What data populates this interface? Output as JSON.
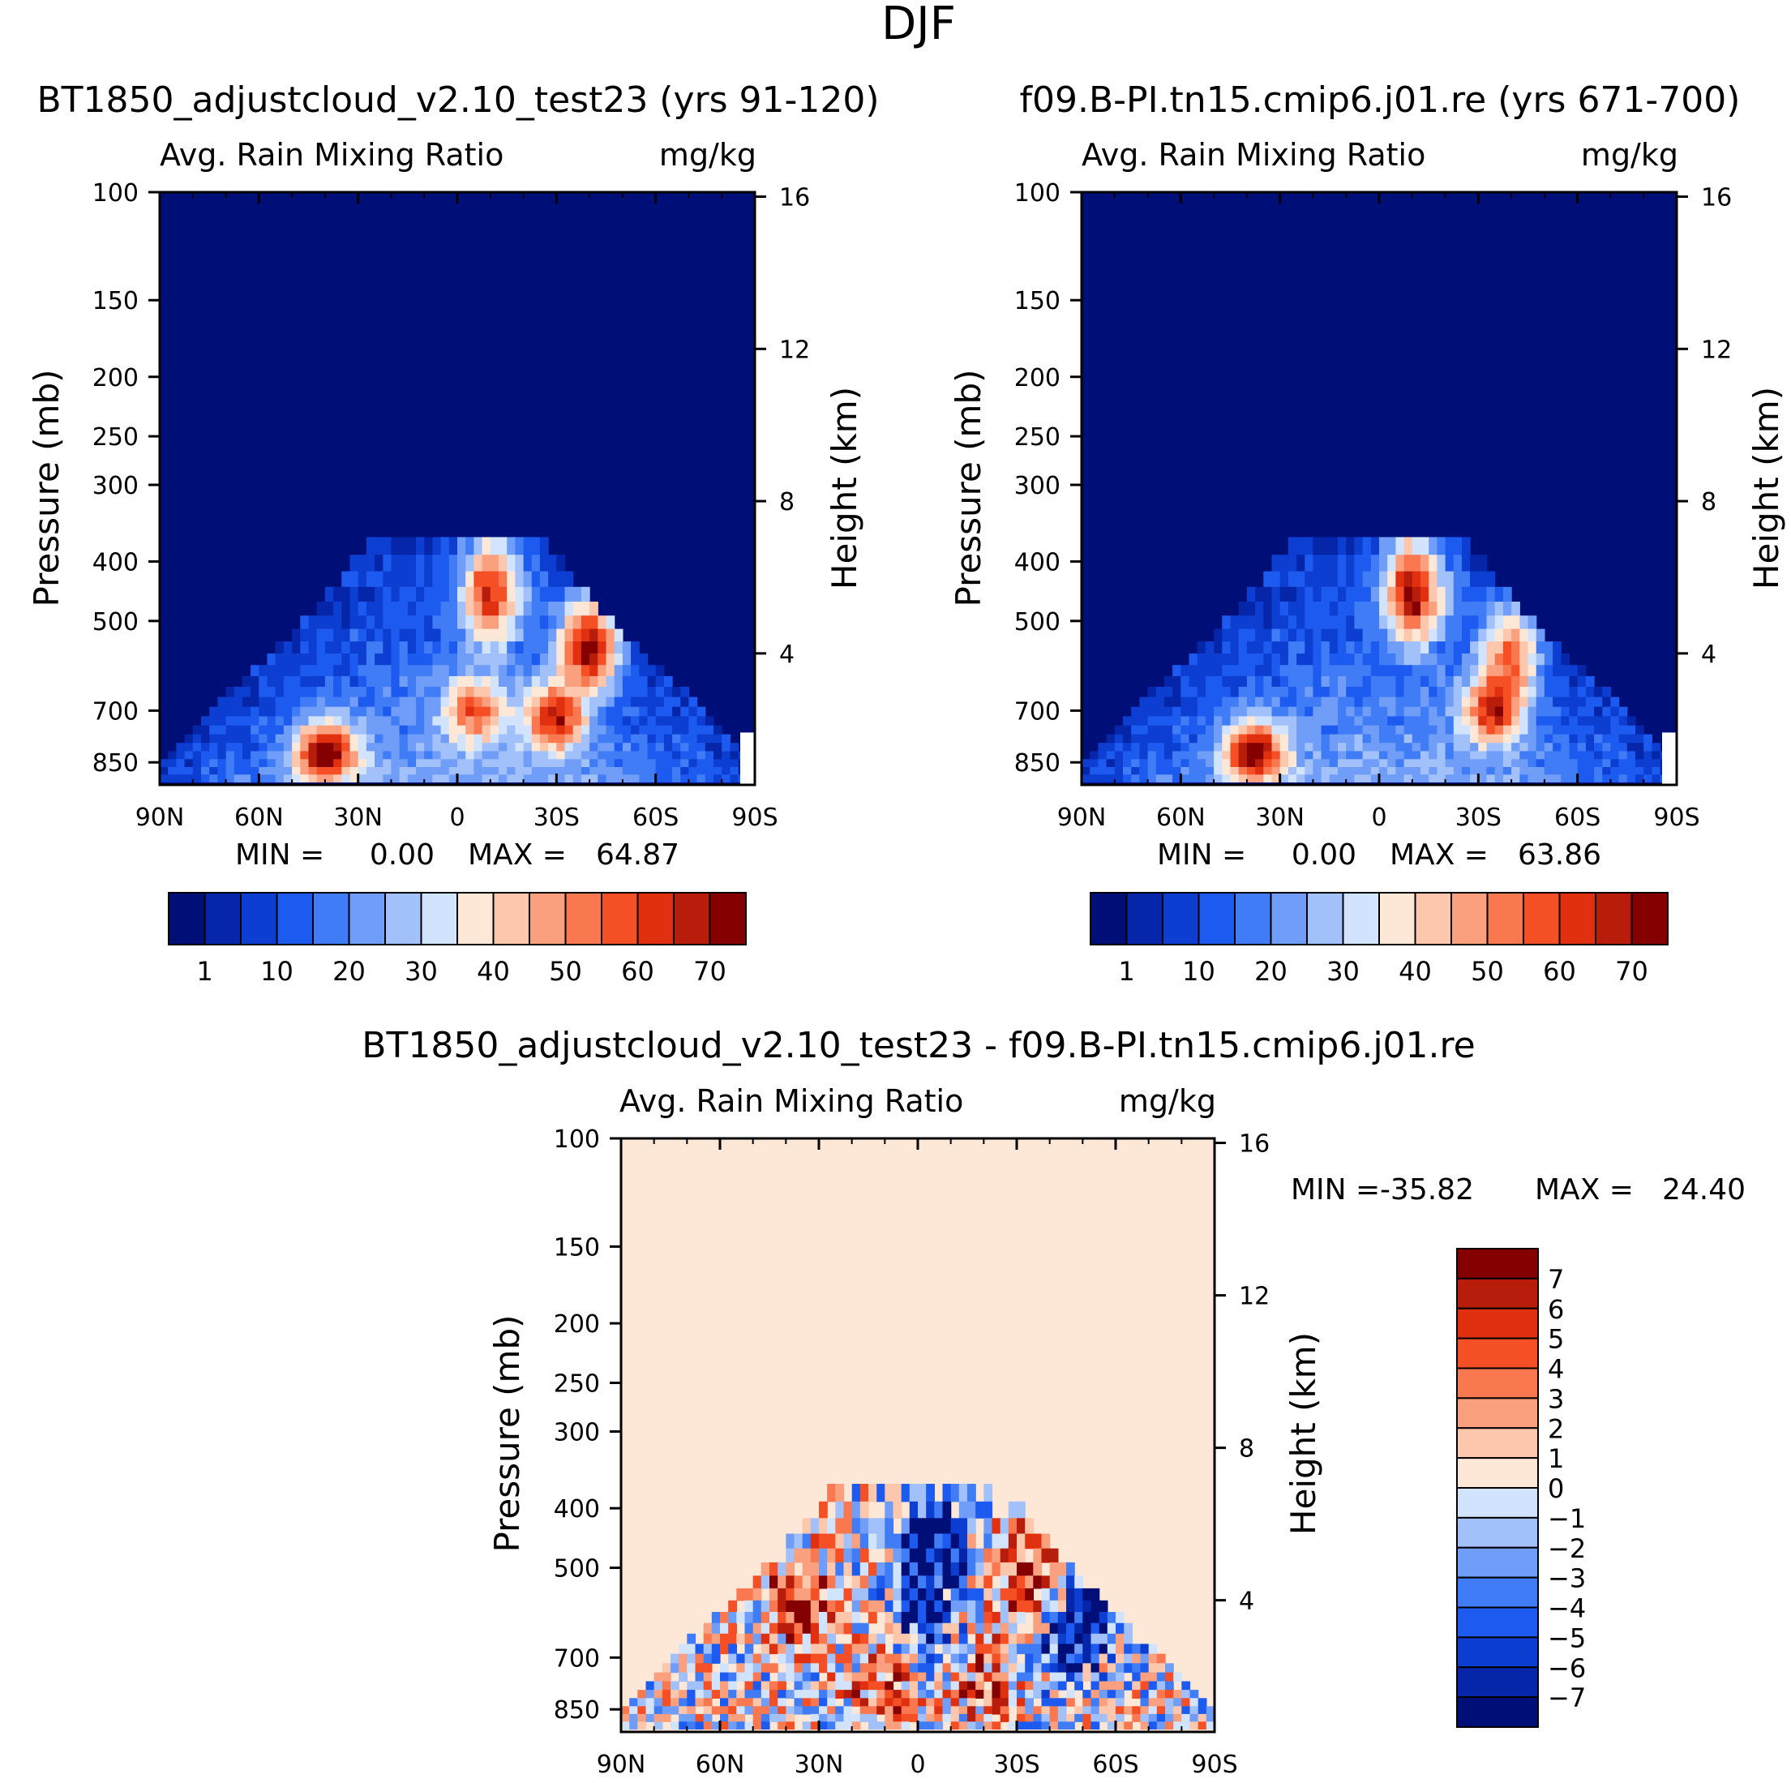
{
  "title": "DJF",
  "colors": {
    "abs_levels": [
      "#000f78",
      "#0526a8",
      "#0d3ed2",
      "#1d5bf0",
      "#3f7cf5",
      "#6f9df7",
      "#a2c0fa",
      "#d2e4fd",
      "#fde8d8",
      "#fcc7ad",
      "#fba07f",
      "#f97850",
      "#f54f25",
      "#e0300f",
      "#b81c0a",
      "#850000"
    ],
    "diff_levels": [
      "#000f78",
      "#0526a8",
      "#0d3ed2",
      "#1d5bf0",
      "#3f7cf5",
      "#6f9df7",
      "#a2c0fa",
      "#d2e4fd",
      "#fde8d8",
      "#fcc7ad",
      "#fba07f",
      "#f97850",
      "#f54f25",
      "#e0300f",
      "#b81c0a",
      "#850000"
    ]
  },
  "chart_data": [
    {
      "type": "heatmap",
      "id": "panel-test",
      "title": "BT1850_adjustcloud_v2.10_test23 (yrs 91-120)",
      "variable": "Avg. Rain Mixing Ratio",
      "units": "mg/kg",
      "xlabel": "",
      "ylabel": "Pressure (mb)",
      "y2label": "Height (km)",
      "x_ticks": [
        "90N",
        "60N",
        "30N",
        "0",
        "30S",
        "60S",
        "90S"
      ],
      "y_ticks": [
        "100",
        "150",
        "200",
        "250",
        "300",
        "400",
        "500",
        "700",
        "850"
      ],
      "y2_ticks": [
        "16",
        "12",
        "8",
        "4"
      ],
      "stats": {
        "min_label": "MIN =",
        "min": "0.00",
        "max_label": "MAX =",
        "max": "64.87"
      },
      "colorbar": {
        "orientation": "horizontal",
        "labels": [
          "1",
          "10",
          "20",
          "30",
          "40",
          "50",
          "60",
          "70"
        ]
      },
      "features": [
        {
          "lat": 40,
          "p": 820,
          "value": 60
        },
        {
          "lat": -40,
          "p": 550,
          "value": 62
        },
        {
          "lat": -10,
          "p": 450,
          "value": 55
        },
        {
          "lat": -30,
          "p": 720,
          "value": 50
        },
        {
          "lat": -5,
          "p": 700,
          "value": 40
        }
      ]
    },
    {
      "type": "heatmap",
      "id": "panel-ctrl",
      "title": "f09.B-PI.tn15.cmip6.j01.re (yrs 671-700)",
      "variable": "Avg. Rain Mixing Ratio",
      "units": "mg/kg",
      "xlabel": "",
      "ylabel": "Pressure (mb)",
      "y2label": "Height (km)",
      "x_ticks": [
        "90N",
        "60N",
        "30N",
        "0",
        "30S",
        "60S",
        "90S"
      ],
      "y_ticks": [
        "100",
        "150",
        "200",
        "250",
        "300",
        "400",
        "500",
        "700",
        "850"
      ],
      "y2_ticks": [
        "16",
        "12",
        "8",
        "4"
      ],
      "stats": {
        "min_label": "MIN =",
        "min": "0.00",
        "max_label": "MAX =",
        "max": "63.86"
      },
      "colorbar": {
        "orientation": "horizontal",
        "labels": [
          "1",
          "10",
          "20",
          "30",
          "40",
          "50",
          "60",
          "70"
        ]
      },
      "features": [
        {
          "lat": 38,
          "p": 820,
          "value": 58
        },
        {
          "lat": -10,
          "p": 450,
          "value": 62
        },
        {
          "lat": -35,
          "p": 700,
          "value": 50
        },
        {
          "lat": -40,
          "p": 560,
          "value": 40
        }
      ]
    },
    {
      "type": "heatmap",
      "id": "panel-diff",
      "title": "BT1850_adjustcloud_v2.10_test23 - f09.B-PI.tn15.cmip6.j01.re",
      "variable": "Avg. Rain Mixing Ratio",
      "units": "mg/kg",
      "xlabel": "",
      "ylabel": "Pressure (mb)",
      "y2label": "Height (km)",
      "x_ticks": [
        "90N",
        "60N",
        "30N",
        "0",
        "30S",
        "60S",
        "90S"
      ],
      "y_ticks": [
        "100",
        "150",
        "200",
        "250",
        "300",
        "400",
        "500",
        "700",
        "850"
      ],
      "y2_ticks": [
        "16",
        "12",
        "8",
        "4"
      ],
      "stats": {
        "min_label": "MIN =",
        "min": "-35.82",
        "max_label": "MAX =",
        "max": "24.40"
      },
      "colorbar": {
        "orientation": "vertical",
        "labels": [
          "7",
          "6",
          "5",
          "4",
          "3",
          "2",
          "1",
          "0",
          "-1",
          "-2",
          "-3",
          "-4",
          "-5",
          "-6",
          "-7"
        ]
      },
      "features": [
        {
          "lat": -35,
          "p": 540,
          "value": 7
        },
        {
          "lat": -5,
          "p": 450,
          "value": -7
        },
        {
          "lat": 10,
          "p": 780,
          "value": 5
        },
        {
          "lat": -20,
          "p": 780,
          "value": 4
        },
        {
          "lat": 0,
          "p": 600,
          "value": -6
        },
        {
          "lat": -45,
          "p": 650,
          "value": -7
        },
        {
          "lat": 35,
          "p": 580,
          "value": 6
        },
        {
          "lat": -55,
          "p": 550,
          "value": -6
        }
      ]
    }
  ]
}
